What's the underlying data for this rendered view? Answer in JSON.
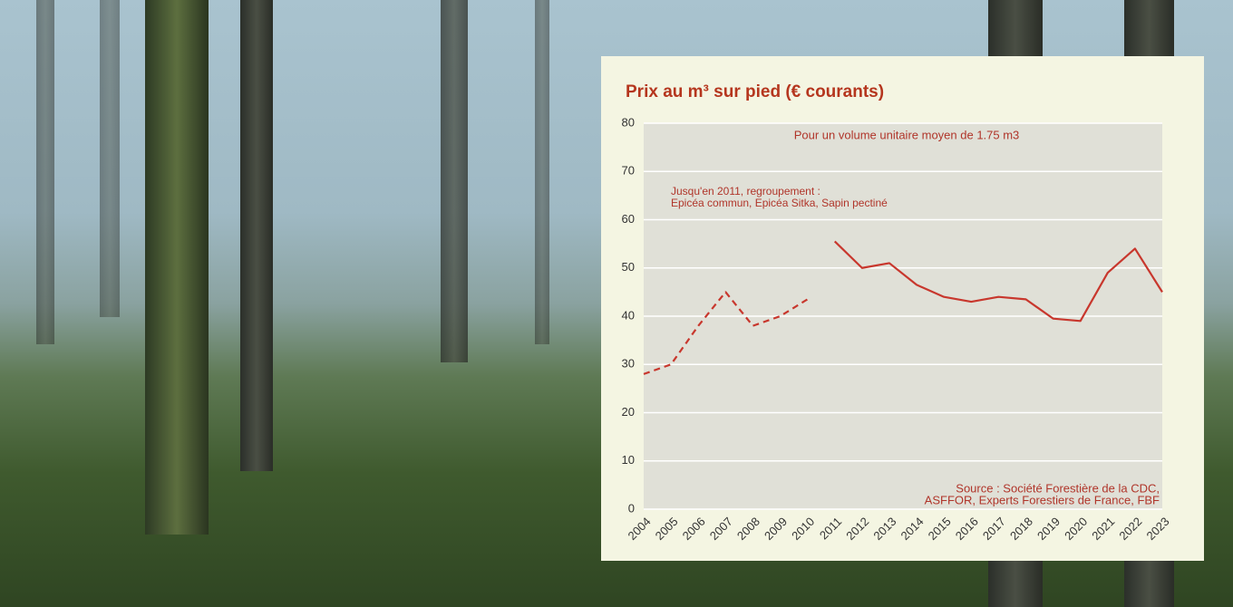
{
  "chart_data": {
    "type": "line",
    "title": "Prix au m³ sur pied (€ courants)",
    "annotations": [
      "Pour un volume unitaire moyen de 1.75 m3",
      "Jusqu'en 2011, regroupement :",
      "Epicéa commun, Epicéa Sitka, Sapin pectiné",
      "Source : Société Forestière de la CDC,",
      "ASFFOR, Experts Forestiers de France, FBF"
    ],
    "categories": [
      "2004",
      "2005",
      "2006",
      "2007",
      "2008",
      "2009",
      "2010",
      "2011",
      "2012",
      "2013",
      "2014",
      "2015",
      "2016",
      "2017",
      "2018",
      "2019",
      "2020",
      "2021",
      "2022",
      "2023"
    ],
    "series": [
      {
        "color": "#c8372d",
        "line_style": "dashed",
        "values": [
          28,
          30,
          38,
          45,
          38,
          40,
          43.5,
          null,
          null,
          null,
          null,
          null,
          null,
          null,
          null,
          null,
          null,
          null,
          null,
          null
        ]
      },
      {
        "color": "#c8372d",
        "line_style": "solid",
        "values": [
          null,
          null,
          null,
          null,
          null,
          null,
          null,
          55.5,
          50,
          51,
          46.5,
          44,
          43,
          44,
          43.5,
          39.5,
          39,
          49,
          54,
          45
        ]
      }
    ],
    "ylim": [
      0,
      80
    ],
    "yticks": [
      0,
      10,
      20,
      30,
      40,
      50,
      60,
      70,
      80
    ],
    "grid": true
  }
}
